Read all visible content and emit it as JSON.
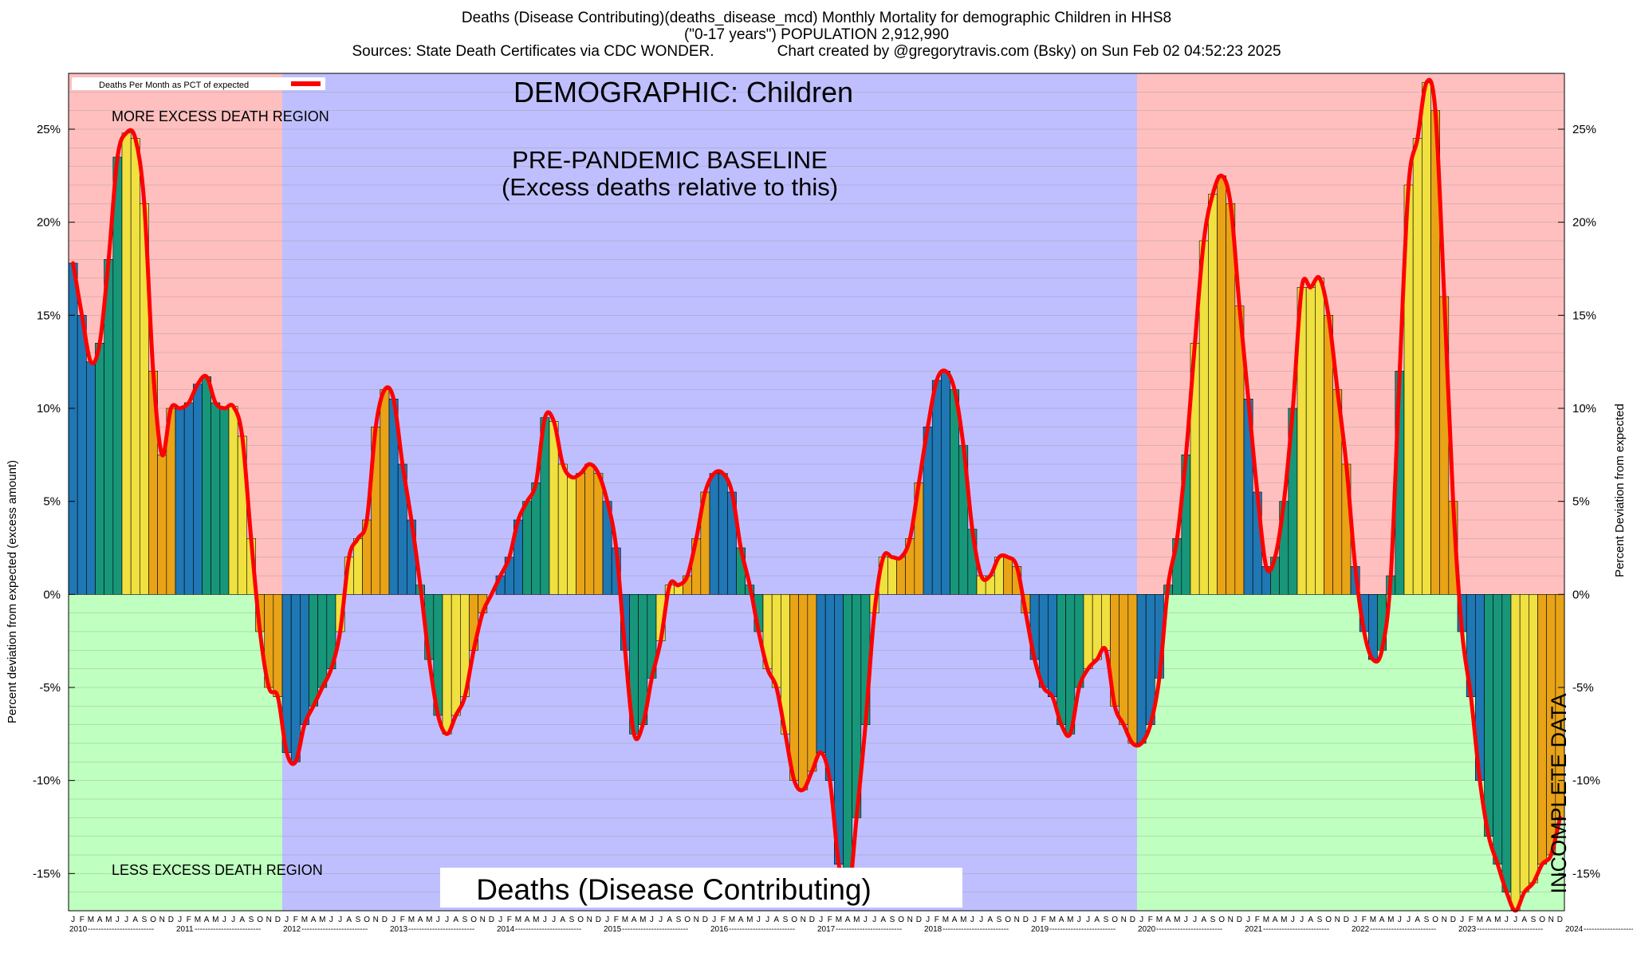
{
  "header": {
    "line1": "Deaths (Disease Contributing)(deaths_disease_mcd) Monthly Mortality for demographic Children in HHS8",
    "line2": "(\"0-17 years\") POPULATION 2,912,990",
    "line3": "Sources: State Death Certificates via CDC WONDER.               Chart created by @gregorytravis.com (Bsky) on Sun Feb 02 04:52:23 2025"
  },
  "colors": {
    "more_excess_region": "#ffbfbf",
    "less_excess_region": "#bfffbf",
    "baseline_region": "#bfbfff",
    "bar_palette": [
      "#1f77b4",
      "#17967a",
      "#f0e040",
      "#e8a317"
    ],
    "line": "#ff0000",
    "incomplete_hatch": "#000000"
  },
  "chart_data": {
    "type": "bar",
    "title": "DEMOGRAPHIC: Children",
    "bottom_title": "Deaths (Disease Contributing)",
    "ylabel_left": "Percent deviation from expected (excess amount)",
    "ylabel_right": "Percent Deviation from expected",
    "ylim": [
      -17,
      28
    ],
    "y_ticks": [
      -15,
      -10,
      -5,
      0,
      5,
      10,
      15,
      20,
      25
    ],
    "y_tick_labels": [
      "-15%",
      "-10%",
      "-5%",
      "0%",
      "5%",
      "10%",
      "15%",
      "20%",
      "25%"
    ],
    "grid": true,
    "legend": {
      "label": "Deaths Per Month as PCT of expected",
      "position": "top-left"
    },
    "region_labels": {
      "more": "MORE EXCESS DEATH REGION",
      "less": "LESS EXCESS DEATH REGION",
      "baseline_line1": "PRE-PANDEMIC BASELINE",
      "baseline_line2": "(Excess deaths relative to this)",
      "incomplete": "INCOMPLETE DATA"
    },
    "baseline_years": [
      "2012",
      "2013",
      "2014",
      "2015",
      "2016",
      "2017",
      "2018",
      "2019"
    ],
    "incomplete_from": "2024-03",
    "month_letters": [
      "J",
      "F",
      "M",
      "A",
      "M",
      "J",
      "J",
      "A",
      "S",
      "O",
      "N",
      "D"
    ],
    "years": [
      "2010",
      "2011",
      "2012",
      "2013",
      "2014",
      "2015",
      "2016",
      "2017",
      "2018",
      "2019",
      "2020",
      "2021",
      "2022",
      "2023",
      "2024"
    ],
    "values": [
      17.8,
      15.0,
      12.5,
      13.5,
      18.0,
      23.5,
      24.8,
      24.5,
      21.0,
      12.0,
      7.5,
      10.0,
      10.0,
      10.3,
      11.3,
      11.7,
      10.3,
      10.0,
      10.1,
      8.5,
      3.0,
      -2.0,
      -5.0,
      -5.5,
      -8.5,
      -9.0,
      -7.0,
      -6.0,
      -5.0,
      -4.0,
      -2.0,
      2.0,
      3.0,
      4.0,
      9.0,
      11.0,
      10.5,
      7.0,
      4.0,
      0.5,
      -3.5,
      -6.5,
      -7.5,
      -6.5,
      -5.5,
      -3.0,
      -1.0,
      0.0,
      1.0,
      2.0,
      4.0,
      5.0,
      6.0,
      9.5,
      9.3,
      7.0,
      6.3,
      6.5,
      7.0,
      6.5,
      5.0,
      2.5,
      -3.0,
      -7.5,
      -7.0,
      -4.5,
      -2.5,
      0.5,
      0.5,
      1.0,
      3.0,
      5.5,
      6.5,
      6.5,
      5.5,
      2.5,
      0.5,
      -2.0,
      -4.0,
      -5.0,
      -7.5,
      -10.0,
      -10.5,
      -9.5,
      -8.5,
      -10.0,
      -14.5,
      -16.5,
      -12.0,
      -7.0,
      -1.0,
      2.0,
      2.0,
      2.0,
      3.0,
      6.0,
      9.0,
      11.5,
      12.0,
      11.0,
      8.0,
      3.5,
      1.0,
      1.0,
      2.0,
      2.0,
      1.5,
      -1.0,
      -3.5,
      -5.0,
      -5.5,
      -7.0,
      -7.5,
      -5.0,
      -4.0,
      -3.5,
      -3.0,
      -6.0,
      -7.0,
      -8.0,
      -8.0,
      -7.0,
      -4.5,
      0.5,
      3.0,
      7.5,
      13.5,
      19.0,
      21.5,
      22.5,
      21.0,
      15.5,
      10.5,
      5.5,
      1.5,
      2.0,
      5.0,
      10.0,
      16.5,
      16.5,
      17.0,
      15.0,
      11.0,
      7.0,
      1.5,
      -2.0,
      -3.5,
      -3.0,
      1.0,
      12.0,
      22.0,
      24.5,
      27.5,
      26.0,
      16.0,
      5.0,
      -2.0,
      -5.5,
      -10.0,
      -13.0,
      -14.5,
      -16.0,
      -17.0,
      -16.0,
      -15.5,
      -14.5,
      -14.0,
      -12.0
    ]
  }
}
